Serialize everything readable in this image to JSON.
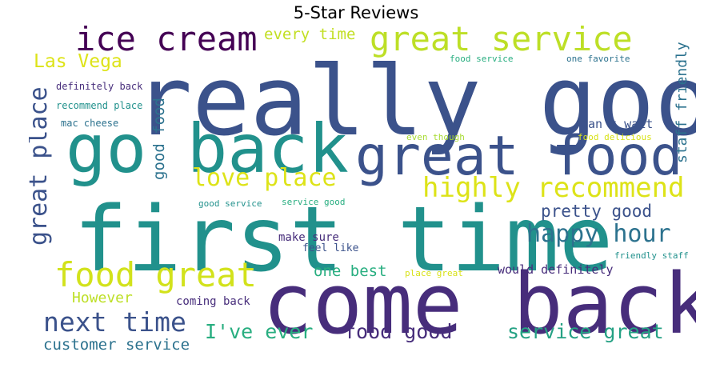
{
  "title": "5-Star Reviews",
  "colors": {
    "background": "#ffffff",
    "dark_purple": "#440154",
    "purple": "#472d7b",
    "indigo": "#3b528b",
    "blue": "#2c728e",
    "teal": "#21918c",
    "green": "#28ae80",
    "light_green": "#5ec962",
    "yellow_green": "#addc30",
    "yellow": "#dde318"
  },
  "words": [
    {
      "text": "really good",
      "color": "#3b528b"
    },
    {
      "text": "first time",
      "color": "#21918c"
    },
    {
      "text": "come back",
      "color": "#472d7b"
    },
    {
      "text": "go back",
      "color": "#21918c"
    },
    {
      "text": "great food",
      "color": "#3b528b"
    },
    {
      "text": "great service",
      "color": "#bddf26"
    },
    {
      "text": "ice cream",
      "color": "#440154"
    },
    {
      "text": "food great",
      "color": "#d2e21b"
    },
    {
      "text": "highly recommend",
      "color": "#dde318"
    },
    {
      "text": "great place",
      "color": "#3b528b"
    },
    {
      "text": "love place",
      "color": "#dde318"
    },
    {
      "text": "next time",
      "color": "#3b528b"
    },
    {
      "text": "happy hour",
      "color": "#2c728e"
    },
    {
      "text": "service great",
      "color": "#25a184"
    },
    {
      "text": "food good",
      "color": "#472d7b"
    },
    {
      "text": "I've ever",
      "color": "#28ae80"
    },
    {
      "text": "Las Vega",
      "color": "#dde318"
    },
    {
      "text": "pretty good",
      "color": "#3b528b"
    },
    {
      "text": "every time",
      "color": "#c2df23"
    },
    {
      "text": "good food",
      "color": "#2c728e"
    },
    {
      "text": "staff friendly",
      "color": "#2c728e"
    },
    {
      "text": "customer service",
      "color": "#2c728e"
    },
    {
      "text": "one best",
      "color": "#28ae80"
    },
    {
      "text": "However",
      "color": "#bddf26"
    },
    {
      "text": "can't wait",
      "color": "#3b528b"
    },
    {
      "text": "would definitely",
      "color": "#472d7b"
    },
    {
      "text": "coming back",
      "color": "#472d7b"
    },
    {
      "text": "make sure",
      "color": "#472d7b"
    },
    {
      "text": "feel like",
      "color": "#3b528b"
    },
    {
      "text": "food service",
      "color": "#28ae80"
    },
    {
      "text": "one favorite",
      "color": "#2c728e"
    },
    {
      "text": "definitely back",
      "color": "#472d7b"
    },
    {
      "text": "recommend place",
      "color": "#21918c"
    },
    {
      "text": "mac cheese",
      "color": "#2c728e"
    },
    {
      "text": "even though",
      "color": "#a8db34"
    },
    {
      "text": "food delicious",
      "color": "#d8e219"
    },
    {
      "text": "good service",
      "color": "#21918c"
    },
    {
      "text": "service good",
      "color": "#28ae80"
    },
    {
      "text": "friendly staff",
      "color": "#21918c"
    },
    {
      "text": "place great",
      "color": "#d8e219"
    }
  ]
}
